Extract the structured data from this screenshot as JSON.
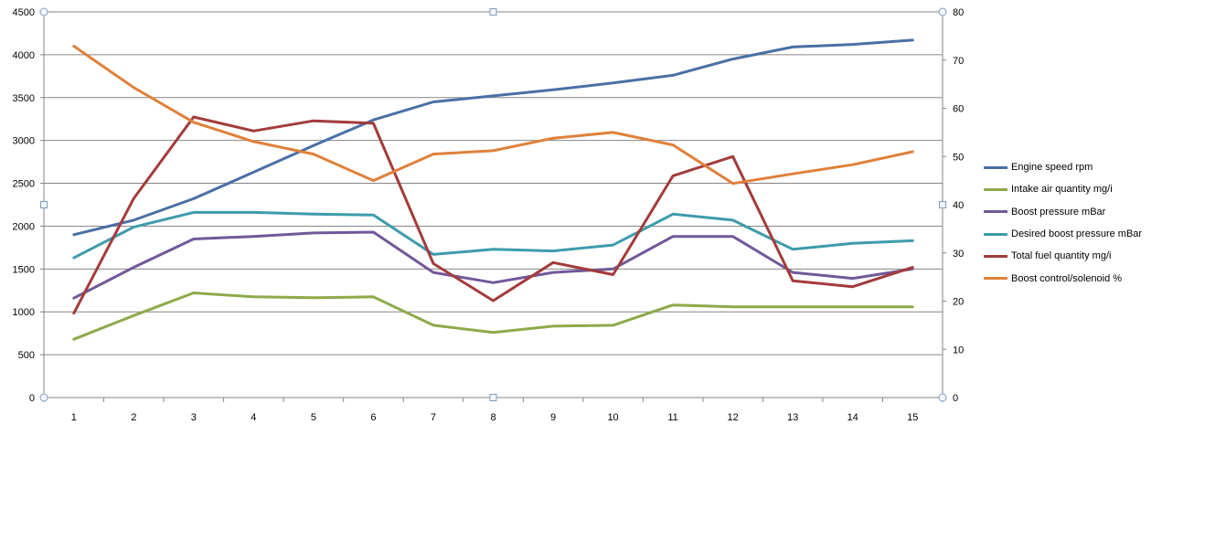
{
  "chart_data": {
    "type": "line",
    "categories": [
      "1",
      "2",
      "3",
      "4",
      "5",
      "6",
      "7",
      "8",
      "9",
      "10",
      "11",
      "12",
      "13",
      "14",
      "15"
    ],
    "y_left": {
      "ylim": [
        0,
        4500
      ],
      "ticks": [
        "0",
        "500",
        "1000",
        "1500",
        "2000",
        "2500",
        "3000",
        "3500",
        "4000",
        "4500"
      ]
    },
    "y_right": {
      "ylim": [
        0,
        80
      ],
      "ticks": [
        "0",
        "10",
        "20",
        "30",
        "40",
        "50",
        "60",
        "70",
        "80"
      ]
    },
    "grid": true,
    "legend_position": "right",
    "series": [
      {
        "name": "Engine speed rpm",
        "axis": "left",
        "color": "#4a6fa5",
        "values": [
          1900,
          2070,
          2320,
          2630,
          2940,
          3240,
          3450,
          3520,
          3590,
          3670,
          3760,
          3950,
          4090,
          4120,
          4170
        ]
      },
      {
        "name": "Intake air quantity mg/i",
        "axis": "right",
        "color": "#8eaa4a",
        "values": [
          12.1,
          17.0,
          21.7,
          20.9,
          20.7,
          20.9,
          15.0,
          13.5,
          14.8,
          15.0,
          19.2,
          18.8,
          18.8,
          18.8,
          18.8
        ]
      },
      {
        "name": "Boost pressure mBar",
        "axis": "left",
        "color": "#71589a",
        "values": [
          1160,
          1520,
          1850,
          1880,
          1920,
          1930,
          1460,
          1340,
          1460,
          1500,
          1880,
          1880,
          1460,
          1390,
          1500
        ]
      },
      {
        "name": "Desired boost pressure mBar",
        "axis": "left",
        "color": "#3d9bac",
        "values": [
          1630,
          1990,
          2160,
          2160,
          2140,
          2130,
          1670,
          1730,
          1710,
          1780,
          2140,
          2070,
          1730,
          1800,
          1830
        ]
      },
      {
        "name": "Total fuel quantity  mg/i",
        "axis": "right",
        "color": "#a33b3b",
        "values": [
          17.5,
          41.3,
          58.2,
          55.3,
          57.4,
          56.9,
          27.8,
          20.1,
          28.0,
          25.5,
          46.0,
          50.0,
          24.2,
          23.0,
          27.0
        ]
      },
      {
        "name": "Boost control/solenoid %",
        "axis": "right",
        "color": "#e0803a",
        "values": [
          72.9,
          64.3,
          57.1,
          53.1,
          50.5,
          45.0,
          50.5,
          51.2,
          53.8,
          55.0,
          52.4,
          44.4,
          46.4,
          48.3,
          51.0
        ]
      }
    ]
  }
}
